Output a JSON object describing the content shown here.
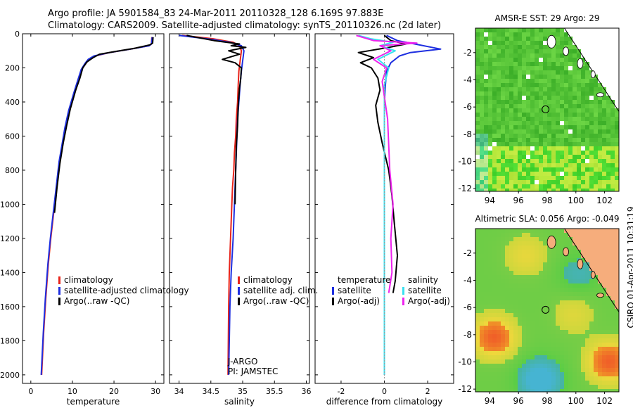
{
  "header": {
    "line1": "Argo profile: JA 5901584_83 24-Mar-2011 20110328_128 6.169S 97.883E",
    "line2": "Climatology: CARS2009. Satellite-adjusted climatology: synTS_20110326.nc (2d later)"
  },
  "side_note": "CSIRO 01-Apr-2011 10:31:19",
  "colors": {
    "clim": "#e8241b",
    "sat": "#1e2fe0",
    "argo": "#000000",
    "sat_sal_diff": "#38e0f0",
    "argo_sal_diff": "#ee22ee",
    "sea_green": "#3fcc3f",
    "land": "#f6ad7c"
  },
  "chart_data": [
    {
      "type": "line",
      "xlabel": "temperature",
      "xlim": [
        -2,
        32
      ],
      "ylim": [
        2050,
        0
      ],
      "xticks": [
        0,
        10,
        20,
        30
      ],
      "xtick_labels": [
        "0",
        "10",
        "20",
        "30"
      ],
      "yticks": [
        0,
        200,
        400,
        600,
        800,
        1000,
        1200,
        1400,
        1600,
        1800,
        2000
      ],
      "ytick_labels": [
        "0",
        "200",
        "400",
        "600",
        "800",
        "1000",
        "1200",
        "1400",
        "1600",
        "1800",
        "2000"
      ],
      "legend": [
        "climatology",
        "satellite-adjusted climatology",
        "Argo(..raw -QC)"
      ],
      "series": [
        {
          "name": "climatology",
          "color": "#e8241b",
          "x": [
            29.1,
            29.0,
            28.4,
            24,
            19,
            15.5,
            14,
            13.2,
            12.2,
            11.3,
            10.4,
            9.2,
            8.3,
            7.6,
            6.9,
            6.2,
            5.5,
            4.8,
            4.2,
            3.6,
            3.1,
            2.6
          ],
          "y": [
            20,
            60,
            70,
            90,
            110,
            130,
            150,
            175,
            210,
            280,
            350,
            450,
            550,
            650,
            750,
            900,
            1050,
            1200,
            1350,
            1550,
            1750,
            2000
          ]
        },
        {
          "name": "satellite-adjusted climatology",
          "color": "#1e2fe0",
          "x": [
            29.2,
            29.0,
            28.5,
            24,
            19,
            15.2,
            13.8,
            13.0,
            12.1,
            11.2,
            10.3,
            9.1,
            8.2,
            7.5,
            6.8,
            6.1,
            5.4,
            4.7,
            4.1,
            3.5,
            3.0,
            2.5
          ],
          "y": [
            20,
            60,
            70,
            90,
            110,
            130,
            150,
            175,
            210,
            280,
            350,
            450,
            550,
            650,
            750,
            900,
            1050,
            1200,
            1350,
            1550,
            1750,
            2000
          ]
        },
        {
          "name": "Argo(..raw -QC)",
          "color": "#000000",
          "x": [
            29.4,
            29.3,
            28.6,
            25,
            20,
            16.5,
            15.0,
            13.5,
            12.5,
            11.8,
            10.8,
            9.5,
            8.6,
            7.8,
            7.0,
            6.3,
            5.7
          ],
          "y": [
            20,
            55,
            65,
            85,
            105,
            120,
            140,
            165,
            200,
            260,
            330,
            440,
            540,
            640,
            760,
            900,
            1050
          ]
        }
      ]
    },
    {
      "type": "line",
      "xlabel": "salinity",
      "xlim": [
        33.85,
        36.05
      ],
      "ylim": [
        2050,
        0
      ],
      "xticks": [
        34,
        34.5,
        35,
        35.5,
        36
      ],
      "xtick_labels": [
        "34",
        "34.5",
        "35",
        "35.5",
        "36"
      ],
      "legend": [
        "climatology",
        "satellite adj. clim.",
        "Argo(..raw -QC)"
      ],
      "annotations": [
        "J-ARGO",
        "PI: JAMSTEC"
      ],
      "series": [
        {
          "name": "climatology",
          "color": "#e8241b",
          "x": [
            34.05,
            34.55,
            34.85,
            34.95,
            34.98,
            34.96,
            34.94,
            34.93,
            34.92,
            34.9,
            34.89,
            34.87,
            34.86,
            34.84,
            34.83,
            34.81,
            34.79,
            34.78,
            34.77
          ],
          "y": [
            10,
            30,
            50,
            70,
            100,
            160,
            220,
            300,
            400,
            500,
            600,
            700,
            800,
            900,
            1000,
            1200,
            1400,
            1600,
            2000
          ]
        },
        {
          "name": "satellite adj. clim.",
          "color": "#1e2fe0",
          "x": [
            34.0,
            34.45,
            34.8,
            34.98,
            35.02,
            35.0,
            34.98,
            34.96,
            34.94,
            34.92,
            34.91,
            34.9,
            34.89,
            34.88,
            34.87,
            34.85,
            34.82,
            34.8,
            34.78
          ],
          "y": [
            10,
            30,
            50,
            70,
            100,
            160,
            220,
            300,
            400,
            500,
            600,
            700,
            800,
            900,
            1000,
            1200,
            1400,
            1600,
            2000
          ]
        },
        {
          "name": "Argo(..raw -QC)",
          "color": "#000000",
          "x": [
            34.12,
            34.55,
            34.95,
            34.82,
            35.05,
            34.78,
            34.95,
            34.68,
            34.88,
            34.98,
            34.97,
            34.95,
            34.93,
            34.92,
            34.9,
            34.89,
            34.88
          ],
          "y": [
            10,
            40,
            60,
            70,
            80,
            100,
            120,
            150,
            170,
            200,
            260,
            320,
            420,
            540,
            660,
            800,
            1000
          ]
        }
      ]
    },
    {
      "type": "line",
      "xlabel": "difference from climatology",
      "xlim": [
        -3.2,
        3.2
      ],
      "ylim": [
        2050,
        0
      ],
      "xticks": [
        -2,
        0,
        2
      ],
      "xtick_labels": [
        "-2",
        "0",
        "2"
      ],
      "legend_groups": [
        {
          "title": "temperature",
          "items": [
            "satellite",
            "Argo(-adj)"
          ]
        },
        {
          "title": "salinity",
          "items": [
            "satellite",
            "Argo(-adj)"
          ]
        }
      ],
      "series": [
        {
          "name": "temperature satellite",
          "color": "#1e2fe0",
          "x": [
            0.1,
            0.6,
            1.4,
            2.6,
            1.2,
            0.7,
            0.3,
            0.1,
            0.05,
            0.0,
            0.0,
            0.0,
            0.0
          ],
          "y": [
            10,
            40,
            60,
            90,
            110,
            130,
            170,
            220,
            300,
            400,
            800,
            1400,
            2000
          ]
        },
        {
          "name": "temperature Argo(-adj)",
          "color": "#000000",
          "x": [
            0.0,
            0.3,
            1.0,
            0.2,
            -1.2,
            -0.5,
            -1.1,
            -0.6,
            -0.3,
            -0.2,
            -0.4,
            -0.3,
            -0.1,
            0.2,
            0.35,
            0.45,
            0.6,
            0.5,
            0.4
          ],
          "y": [
            10,
            40,
            60,
            80,
            110,
            140,
            170,
            200,
            260,
            330,
            420,
            520,
            640,
            800,
            950,
            1100,
            1300,
            1450,
            1520
          ]
        },
        {
          "name": "salinity satellite",
          "color": "#38e0f0",
          "x": [
            -1.2,
            -0.6,
            0.4,
            -0.2,
            0.5,
            -0.3,
            0.2,
            0.0,
            0.0,
            0.0,
            0.0
          ],
          "y": [
            10,
            30,
            50,
            70,
            100,
            150,
            200,
            300,
            600,
            1200,
            2000
          ]
        },
        {
          "name": "salinity Argo(-adj)",
          "color": "#ee22ee",
          "x": [
            -1.3,
            -0.5,
            1.5,
            -0.2,
            0.3,
            -0.5,
            0.1,
            -0.1,
            0.15,
            0.25,
            0.4,
            0.3,
            0.35,
            0.2
          ],
          "y": [
            10,
            40,
            55,
            70,
            100,
            150,
            200,
            280,
            500,
            800,
            1000,
            1200,
            1400,
            1520
          ]
        }
      ]
    },
    {
      "type": "heatmap",
      "title": "AMSR-E SST: 29  Argo: 29",
      "xlim": [
        93,
        103
      ],
      "ylim": [
        -12.2,
        -0.2
      ],
      "xticks": [
        94,
        96,
        98,
        100,
        102
      ],
      "xtick_labels": [
        "94",
        "96",
        "98",
        "100",
        "102"
      ],
      "yticks": [
        -2,
        -4,
        -6,
        -8,
        -10,
        -12
      ],
      "ytick_labels": [
        "-2",
        "-4",
        "-6",
        "-8",
        "-10",
        "-12"
      ],
      "marker": {
        "lon": 97.883,
        "lat": -6.169
      }
    },
    {
      "type": "heatmap",
      "title": "Altimetric SLA: 0.056  Argo: -0.049",
      "xlim": [
        93,
        103
      ],
      "ylim": [
        -12.2,
        -0.2
      ],
      "xticks": [
        94,
        96,
        98,
        100,
        102
      ],
      "xtick_labels": [
        "94",
        "96",
        "98",
        "100",
        "102"
      ],
      "yticks": [
        -2,
        -4,
        -6,
        -8,
        -10,
        -12
      ],
      "ytick_labels": [
        "-2",
        "-4",
        "-6",
        "-8",
        "-10",
        "-12"
      ],
      "marker": {
        "lon": 97.883,
        "lat": -6.169
      }
    }
  ]
}
